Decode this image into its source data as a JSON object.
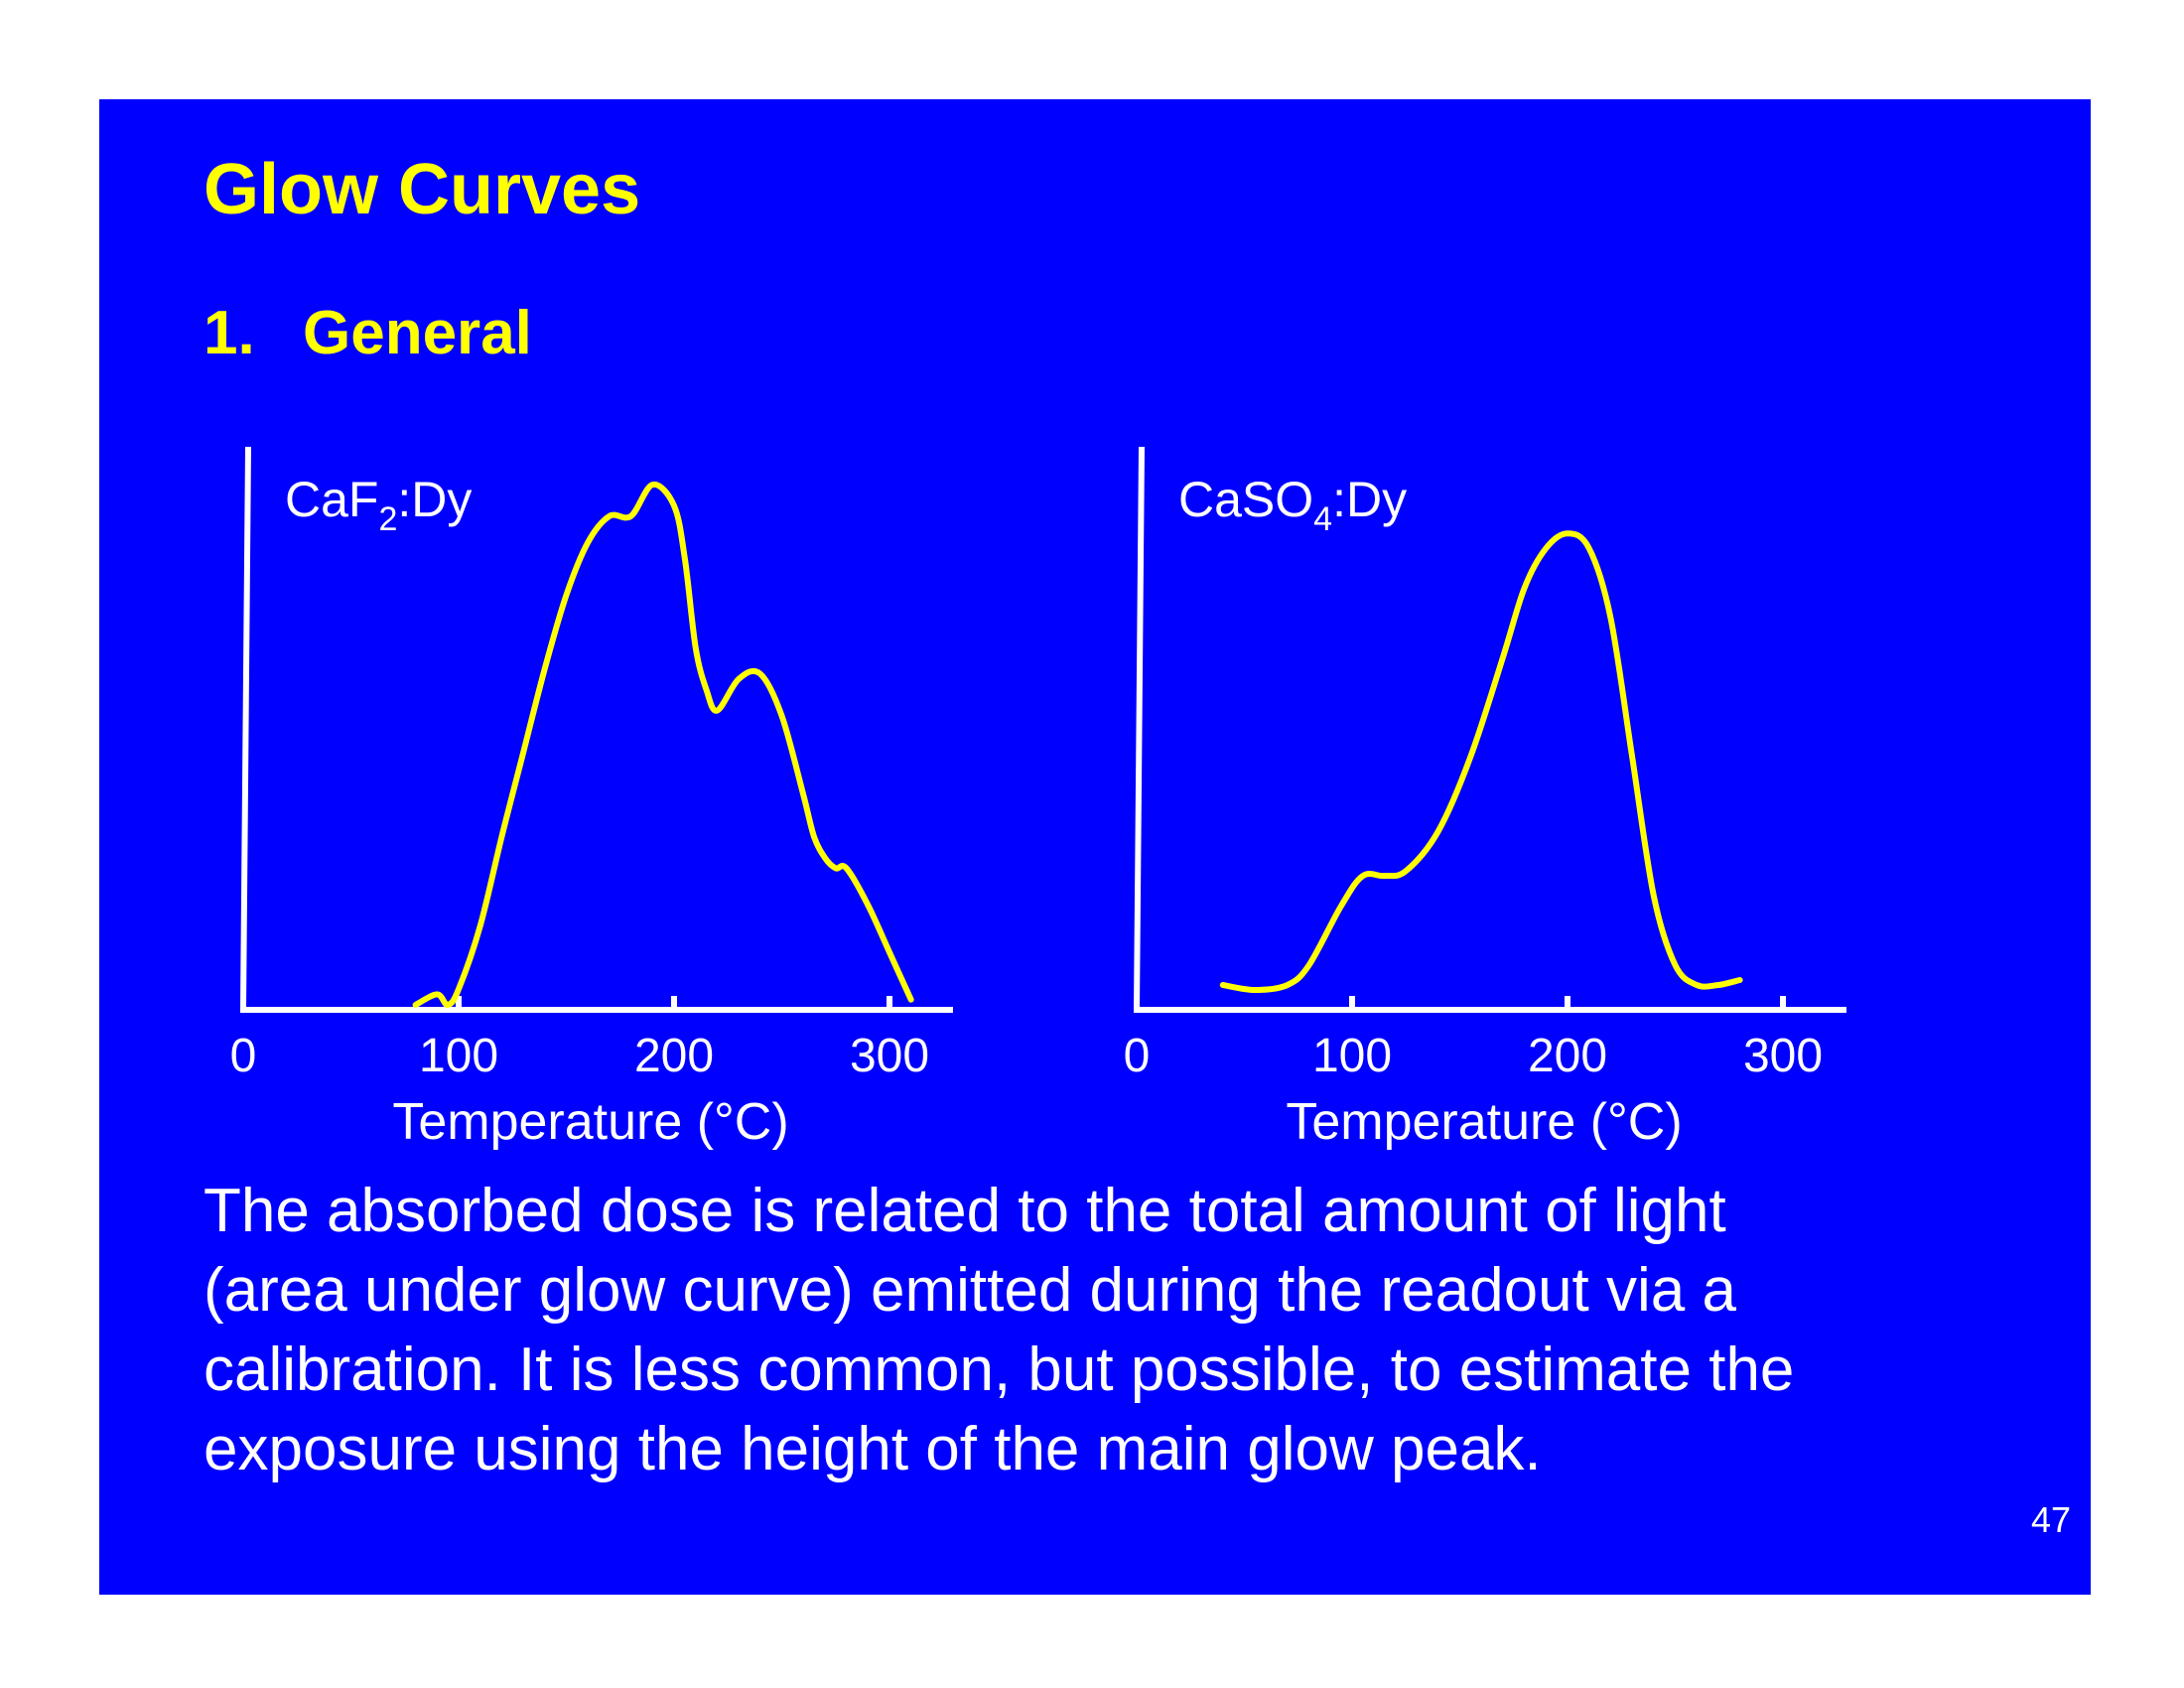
{
  "slide": {
    "title": "Glow Curves",
    "section_number": "1.",
    "section_title": "General",
    "body_lines": [
      "The absorbed dose is related to the total amount of light",
      "(area under glow curve) emitted during the readout via a",
      "calibration. It is less common, but possible, to estimate the",
      "exposure using the height of the main glow peak."
    ],
    "page_number": "47"
  },
  "colors": {
    "background": "#0000ff",
    "heading": "#ffff00",
    "curve": "#ffff00",
    "axes": "#ffffff",
    "text": "#ffffff"
  },
  "chart_data": [
    {
      "type": "line",
      "label_base": "CaF",
      "label_sub": "2",
      "label_rest": ":Dy",
      "xlabel": "Temperature (°C)",
      "ylabel": "",
      "x_ticks": [
        "0",
        "100",
        "200",
        "300"
      ],
      "xlim": [
        0,
        325
      ],
      "ylim": [
        0,
        1
      ],
      "grid": false,
      "series": [
        {
          "x": [
            80,
            90,
            95,
            100,
            110,
            120,
            130,
            140,
            150,
            160,
            170,
            180,
            190,
            200,
            205,
            210,
            215,
            220,
            230,
            240,
            250,
            260,
            265,
            270,
            275,
            280,
            290,
            300,
            310
          ],
          "y": [
            0,
            0.02,
            0.0,
            0.03,
            0.15,
            0.32,
            0.48,
            0.64,
            0.78,
            0.88,
            0.93,
            0.93,
            0.99,
            0.95,
            0.85,
            0.68,
            0.6,
            0.56,
            0.62,
            0.63,
            0.55,
            0.4,
            0.32,
            0.28,
            0.26,
            0.26,
            0.19,
            0.1,
            0.01
          ]
        }
      ]
    },
    {
      "type": "line",
      "label_base": "CaSO",
      "label_sub": "4",
      "label_rest": ":Dy",
      "xlabel": "Temperature (°C)",
      "ylabel": "",
      "x_ticks": [
        "0",
        "100",
        "200",
        "300"
      ],
      "xlim": [
        0,
        325
      ],
      "ylim": [
        0,
        1
      ],
      "grid": false,
      "series": [
        {
          "x": [
            40,
            55,
            70,
            80,
            95,
            105,
            115,
            125,
            140,
            155,
            170,
            180,
            190,
            200,
            210,
            220,
            230,
            240,
            250,
            260,
            270,
            280
          ],
          "y": [
            0.04,
            0.03,
            0.04,
            0.08,
            0.2,
            0.26,
            0.26,
            0.27,
            0.35,
            0.5,
            0.7,
            0.84,
            0.92,
            0.95,
            0.92,
            0.78,
            0.5,
            0.22,
            0.08,
            0.04,
            0.04,
            0.05
          ]
        }
      ]
    }
  ]
}
